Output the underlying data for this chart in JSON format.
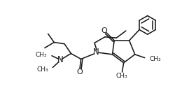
{
  "background_color": "#ffffff",
  "line_color": "#1a1a1a",
  "line_width": 1.15,
  "font_size": 7.0,
  "fig_width": 2.7,
  "fig_height": 1.53,
  "dpi": 100,
  "xlim": [
    0,
    10
  ],
  "ylim": [
    0,
    5.7
  ]
}
